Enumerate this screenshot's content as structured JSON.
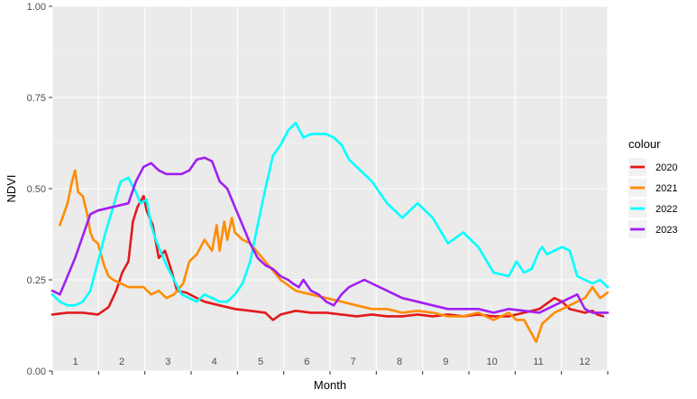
{
  "chart_data": {
    "type": "line",
    "xlabel": "Month",
    "ylabel": "NDVI",
    "xlim": [
      0,
      365
    ],
    "ylim": [
      0,
      1
    ],
    "yticks": [
      "0.00",
      "0.25",
      "0.50",
      "0.75",
      "1.00"
    ],
    "ytick_values": [
      0,
      0.25,
      0.5,
      0.75,
      1
    ],
    "month_labels": [
      "1",
      "2",
      "3",
      "4",
      "5",
      "6",
      "7",
      "8",
      "9",
      "10",
      "11",
      "12"
    ],
    "grid": true,
    "legend": {
      "title": "colour",
      "position": "right"
    },
    "series": [
      {
        "name": "2020",
        "color": "#e31a1c",
        "x": [
          0,
          10,
          20,
          30,
          37,
          42,
          46,
          50,
          53,
          56,
          60,
          62,
          66,
          70,
          74,
          78,
          82,
          88,
          95,
          100,
          110,
          120,
          130,
          140,
          145,
          150,
          160,
          170,
          180,
          190,
          200,
          210,
          220,
          230,
          240,
          250,
          260,
          270,
          280,
          290,
          300,
          310,
          320,
          330,
          335,
          340,
          350,
          355,
          358,
          362
        ],
        "y": [
          0.155,
          0.16,
          0.16,
          0.155,
          0.175,
          0.22,
          0.27,
          0.3,
          0.41,
          0.45,
          0.48,
          0.44,
          0.4,
          0.31,
          0.33,
          0.28,
          0.22,
          0.215,
          0.2,
          0.19,
          0.18,
          0.17,
          0.165,
          0.16,
          0.14,
          0.155,
          0.165,
          0.16,
          0.16,
          0.155,
          0.15,
          0.155,
          0.15,
          0.15,
          0.155,
          0.15,
          0.155,
          0.15,
          0.155,
          0.15,
          0.15,
          0.16,
          0.17,
          0.2,
          0.19,
          0.17,
          0.16,
          0.165,
          0.155,
          0.15
        ]
      },
      {
        "name": "2021",
        "color": "#ff8c00",
        "x": [
          5,
          10,
          13,
          15,
          17,
          20,
          23,
          25,
          27,
          30,
          34,
          37,
          40,
          45,
          50,
          55,
          60,
          65,
          70,
          75,
          80,
          86,
          90,
          95,
          100,
          105,
          108,
          110,
          113,
          115,
          118,
          120,
          125,
          130,
          140,
          150,
          160,
          170,
          180,
          190,
          200,
          210,
          220,
          230,
          240,
          250,
          260,
          270,
          280,
          290,
          300,
          305,
          310,
          318,
          322,
          330,
          340,
          345,
          350,
          355,
          360,
          365
        ],
        "y": [
          0.4,
          0.46,
          0.52,
          0.55,
          0.49,
          0.48,
          0.43,
          0.38,
          0.36,
          0.35,
          0.29,
          0.26,
          0.25,
          0.24,
          0.23,
          0.23,
          0.23,
          0.21,
          0.22,
          0.2,
          0.21,
          0.24,
          0.3,
          0.32,
          0.36,
          0.33,
          0.4,
          0.33,
          0.41,
          0.36,
          0.42,
          0.38,
          0.36,
          0.35,
          0.3,
          0.25,
          0.22,
          0.21,
          0.2,
          0.19,
          0.18,
          0.17,
          0.17,
          0.16,
          0.165,
          0.16,
          0.15,
          0.15,
          0.16,
          0.14,
          0.16,
          0.14,
          0.14,
          0.08,
          0.13,
          0.16,
          0.18,
          0.19,
          0.2,
          0.23,
          0.2,
          0.215
        ]
      },
      {
        "name": "2022",
        "color": "#00ffff",
        "x": [
          0,
          5,
          10,
          15,
          20,
          25,
          30,
          35,
          40,
          45,
          50,
          55,
          58,
          62,
          65,
          68,
          72,
          75,
          80,
          85,
          90,
          95,
          100,
          105,
          110,
          115,
          120,
          125,
          130,
          135,
          140,
          145,
          150,
          155,
          160,
          165,
          170,
          175,
          180,
          185,
          190,
          195,
          200,
          210,
          220,
          230,
          240,
          250,
          260,
          270,
          280,
          290,
          300,
          305,
          310,
          315,
          320,
          322,
          325,
          330,
          335,
          340,
          345,
          350,
          355,
          360,
          365
        ],
        "y": [
          0.21,
          0.19,
          0.18,
          0.18,
          0.19,
          0.22,
          0.3,
          0.38,
          0.45,
          0.52,
          0.53,
          0.49,
          0.46,
          0.47,
          0.4,
          0.36,
          0.32,
          0.29,
          0.25,
          0.21,
          0.2,
          0.19,
          0.21,
          0.2,
          0.19,
          0.19,
          0.21,
          0.24,
          0.3,
          0.4,
          0.5,
          0.59,
          0.62,
          0.66,
          0.68,
          0.64,
          0.65,
          0.65,
          0.65,
          0.64,
          0.62,
          0.58,
          0.56,
          0.52,
          0.46,
          0.42,
          0.46,
          0.42,
          0.35,
          0.38,
          0.34,
          0.27,
          0.26,
          0.3,
          0.27,
          0.28,
          0.33,
          0.34,
          0.32,
          0.33,
          0.34,
          0.33,
          0.26,
          0.25,
          0.24,
          0.25,
          0.23
        ]
      },
      {
        "name": "2023",
        "color": "#a020f0",
        "x": [
          0,
          5,
          10,
          15,
          20,
          25,
          30,
          35,
          40,
          45,
          50,
          55,
          60,
          65,
          70,
          75,
          80,
          85,
          90,
          95,
          100,
          105,
          110,
          115,
          120,
          125,
          130,
          135,
          140,
          145,
          150,
          155,
          158,
          162,
          165,
          170,
          175,
          180,
          185,
          190,
          195,
          200,
          205,
          210,
          220,
          230,
          240,
          250,
          260,
          270,
          280,
          290,
          300,
          310,
          320,
          330,
          335,
          340,
          345,
          350,
          355,
          360,
          365
        ],
        "y": [
          0.22,
          0.21,
          0.26,
          0.31,
          0.37,
          0.43,
          0.44,
          0.445,
          0.45,
          0.455,
          0.46,
          0.52,
          0.56,
          0.57,
          0.55,
          0.54,
          0.54,
          0.54,
          0.55,
          0.58,
          0.585,
          0.575,
          0.52,
          0.5,
          0.45,
          0.4,
          0.35,
          0.31,
          0.29,
          0.28,
          0.26,
          0.25,
          0.24,
          0.23,
          0.25,
          0.22,
          0.21,
          0.19,
          0.18,
          0.21,
          0.23,
          0.24,
          0.25,
          0.24,
          0.22,
          0.2,
          0.19,
          0.18,
          0.17,
          0.17,
          0.17,
          0.16,
          0.17,
          0.165,
          0.16,
          0.18,
          0.19,
          0.2,
          0.21,
          0.17,
          0.16,
          0.16,
          0.16
        ]
      }
    ]
  }
}
